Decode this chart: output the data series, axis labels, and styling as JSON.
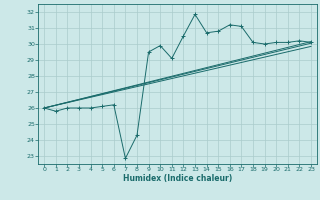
{
  "xlabel": "Humidex (Indice chaleur)",
  "background_color": "#cce8e8",
  "grid_color": "#aacccc",
  "line_color": "#1a6b6b",
  "xlim": [
    -0.5,
    23.5
  ],
  "ylim": [
    22.5,
    32.5
  ],
  "yticks": [
    23,
    24,
    25,
    26,
    27,
    28,
    29,
    30,
    31,
    32
  ],
  "xticks": [
    0,
    1,
    2,
    3,
    4,
    5,
    6,
    7,
    8,
    9,
    10,
    11,
    12,
    13,
    14,
    15,
    16,
    17,
    18,
    19,
    20,
    21,
    22,
    23
  ],
  "main_x": [
    0,
    1,
    2,
    3,
    4,
    5,
    6,
    7,
    8,
    9,
    10,
    11,
    12,
    13,
    14,
    15,
    16,
    17,
    18,
    19,
    20,
    21,
    22,
    23
  ],
  "main_y": [
    26.0,
    25.8,
    26.0,
    26.0,
    26.0,
    26.1,
    26.2,
    22.85,
    24.3,
    29.5,
    29.9,
    29.1,
    30.5,
    31.85,
    30.7,
    30.8,
    31.2,
    31.1,
    30.1,
    30.0,
    30.1,
    30.1,
    30.2,
    30.1
  ],
  "trend_lines": [
    {
      "x": [
        0,
        23
      ],
      "y": [
        26.0,
        30.15
      ]
    },
    {
      "x": [
        0,
        23
      ],
      "y": [
        26.0,
        30.05
      ]
    },
    {
      "x": [
        0,
        23
      ],
      "y": [
        26.0,
        29.85
      ]
    }
  ]
}
